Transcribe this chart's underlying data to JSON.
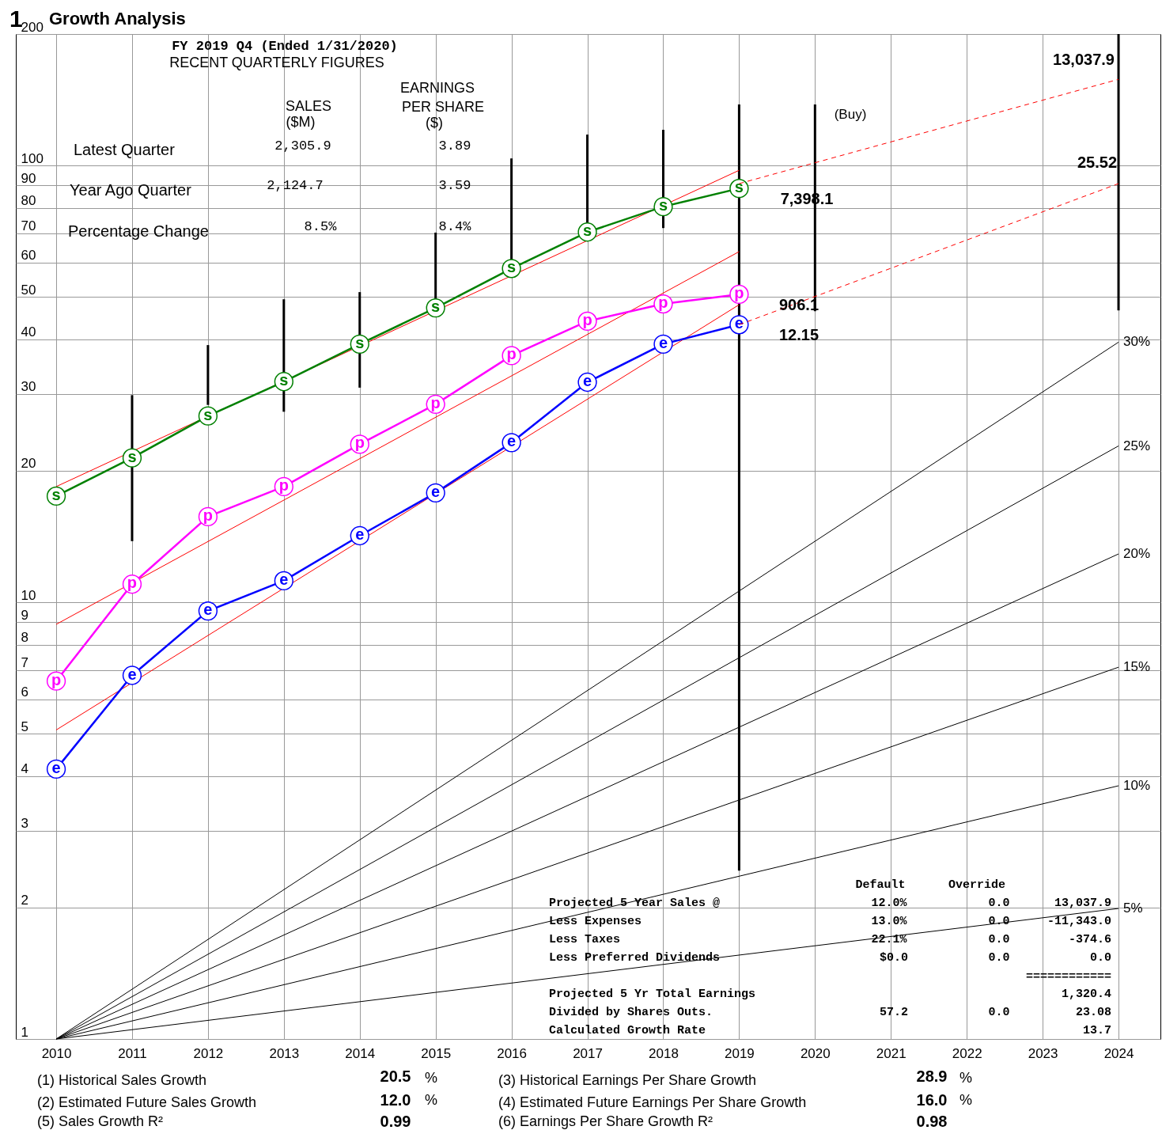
{
  "chart_data": {
    "type": "line",
    "title": "Growth Analysis",
    "subtitle": "FY 2019 Q4  (Ended 1/31/2020)",
    "xlim": [
      2009.52,
      2024.5
    ],
    "xticks": [
      2010,
      2011,
      2012,
      2013,
      2014,
      2015,
      2016,
      2017,
      2018,
      2019,
      2020,
      2021,
      2022,
      2023,
      2024
    ],
    "ylim": [
      1,
      200
    ],
    "yticks": [
      1,
      2,
      3,
      4,
      5,
      6,
      7,
      8,
      9,
      10,
      20,
      30,
      40,
      50,
      60,
      70,
      80,
      90,
      100,
      200
    ],
    "log": true,
    "grid": true,
    "series": [
      {
        "color": "#000000",
        "marker": "none",
        "name": "30%",
        "x": [
          2010,
          2024
        ],
        "values": [
          1,
          39.4
        ]
      },
      {
        "color": "#000000",
        "marker": "none",
        "name": "25%",
        "x": [
          2010,
          2024
        ],
        "values": [
          1,
          22.8
        ]
      },
      {
        "color": "#000000",
        "marker": "none",
        "name": "20%",
        "x": [
          2010,
          2024
        ],
        "values": [
          1,
          12.9
        ]
      },
      {
        "color": "#000000",
        "marker": "none",
        "name": "15%",
        "x": [
          2010,
          2024
        ],
        "values": [
          1,
          7.1
        ]
      },
      {
        "color": "#000000",
        "marker": "none",
        "name": "10%",
        "x": [
          2010,
          2024
        ],
        "values": [
          1,
          3.8
        ]
      },
      {
        "color": "#000000",
        "marker": "none",
        "name": "5%",
        "x": [
          2010,
          2024
        ],
        "values": [
          1,
          1.99
        ]
      },
      {
        "type": "bar",
        "color": "#000000",
        "x": [
          2011,
          2012,
          2013,
          2014,
          2015,
          2016,
          2017,
          2018,
          2019,
          2020,
          2024
        ],
        "base": [
          13.8,
          28.3,
          27.3,
          31.0,
          47,
          58,
          70,
          71.9,
          2.43,
          46.4,
          46.6
        ],
        "values": [
          16.0,
          10.5,
          22.1,
          20.3,
          23.2,
          45.8,
          47.7,
          48.8,
          135.6,
          91.6,
          153.4
        ]
      },
      {
        "color": "#ff0000",
        "marker": "none",
        "x": [
          2010,
          2019
        ],
        "values": [
          18.4,
          97.5
        ]
      },
      {
        "color": "#ff0000",
        "marker": "none",
        "x": [
          2010,
          2019
        ],
        "values": [
          8.9,
          63.5
        ]
      },
      {
        "color": "#ff0000",
        "marker": "none",
        "x": [
          2010,
          2019
        ],
        "values": [
          5.1,
          48.0
        ]
      },
      {
        "color": "#008000",
        "marker": "circle",
        "name": "s",
        "x": [
          2010,
          2011,
          2012,
          2013,
          2014,
          2015,
          2016,
          2017,
          2018,
          2019
        ],
        "values": [
          17.5,
          21.4,
          26.7,
          32.0,
          39.0,
          47.2,
          58.1,
          70.4,
          80.5,
          88.6
        ]
      },
      {
        "color": "#ff00ff",
        "marker": "circle",
        "name": "p",
        "x": [
          2010,
          2011,
          2012,
          2013,
          2014,
          2015,
          2016,
          2017,
          2018,
          2019
        ],
        "values": [
          6.6,
          11.0,
          15.7,
          18.4,
          23.0,
          28.4,
          36.7,
          44.0,
          48.2,
          50.7
        ]
      },
      {
        "color": "#0000ff",
        "marker": "circle",
        "name": "e",
        "x": [
          2010,
          2011,
          2012,
          2013,
          2014,
          2015,
          2016,
          2017,
          2018,
          2019
        ],
        "values": [
          4.15,
          6.8,
          9.55,
          11.2,
          14.2,
          17.8,
          23.2,
          31.9,
          39.0,
          43.2
        ]
      },
      {
        "color": "#ff0000",
        "marker": "none",
        "line_style": "dashed",
        "x": [
          2019,
          2024
        ],
        "values": [
          90.9,
          157.5
        ]
      },
      {
        "color": "#ff0000",
        "marker": "none",
        "line_style": "dashed",
        "x": [
          2019,
          2024
        ],
        "values": [
          43.2,
          90.9
        ]
      }
    ],
    "annotations": [
      "1",
      "RECENT QUARTERLY FIGURES",
      "SALES",
      "($M)",
      "EARNINGS",
      "PER SHARE",
      "($)",
      "Latest Quarter",
      "2,305.9",
      "3.89",
      "Year Ago Quarter",
      "2,124.7",
      "3.59",
      "Percentage Change",
      "8.5%",
      "8.4%",
      "13,037.9",
      "25.52",
      "7,398.1",
      "906.1",
      "12.15",
      "(Buy)",
      "Default",
      "Override",
      "Projected 5 Year Sales @",
      "12.0%",
      "0.0",
      "13,037.9",
      "Less Expenses",
      "13.0%",
      "0.0",
      "-11,343.0",
      "Less Taxes",
      "22.1%",
      "0.0",
      "-374.6",
      "Less Preferred Dividends",
      "$0.0",
      "0.0",
      "0.0",
      "============",
      "Projected 5 Yr Total Earnings",
      "1,320.4",
      "Divided by Shares Outs.",
      "57.2",
      "0.0",
      "23.08",
      "Calculated Growth Rate",
      "13.7",
      "(1) Historical Sales Growth",
      "20.5",
      "%",
      "(2) Estimated Future Sales Growth",
      "12.0",
      "%",
      "(5) Sales Growth R²",
      "0.99",
      "(3) Historical Earnings Per Share Growth",
      "28.9",
      "%",
      "(4) Estimated Future Earnings Per Share Growth",
      "16.0",
      "%",
      "(6) Earnings Per Share Growth R²",
      "0.98"
    ]
  }
}
